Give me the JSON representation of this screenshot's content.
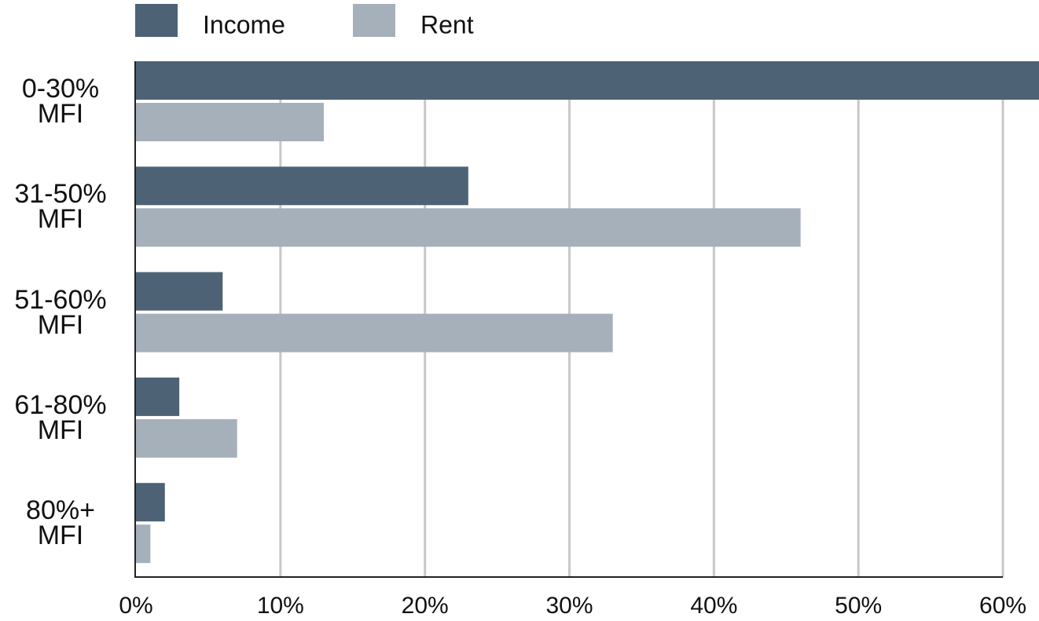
{
  "chart_data": {
    "type": "hbar",
    "categories": [
      "0-30% MFI",
      "31-50% MFI",
      "51-60% MFI",
      "61-80% MFI",
      "80%+ MFI"
    ],
    "series": [
      {
        "name": "Income",
        "color": "#4d6275",
        "values": [
          63,
          23,
          6,
          3,
          2
        ]
      },
      {
        "name": "Rent",
        "color": "#a6b0bb",
        "values": [
          13,
          46,
          33,
          7,
          1
        ]
      }
    ],
    "xlim": [
      0,
      62.5
    ],
    "xticks": [
      {
        "value": 0,
        "label": "0%"
      },
      {
        "value": 10,
        "label": "10%"
      },
      {
        "value": 20,
        "label": "20%"
      },
      {
        "value": 30,
        "label": "30%"
      },
      {
        "value": 40,
        "label": "40%"
      },
      {
        "value": 50,
        "label": "50%"
      },
      {
        "value": 60,
        "label": "60%"
      }
    ],
    "grid": true,
    "legend": "top-left"
  }
}
